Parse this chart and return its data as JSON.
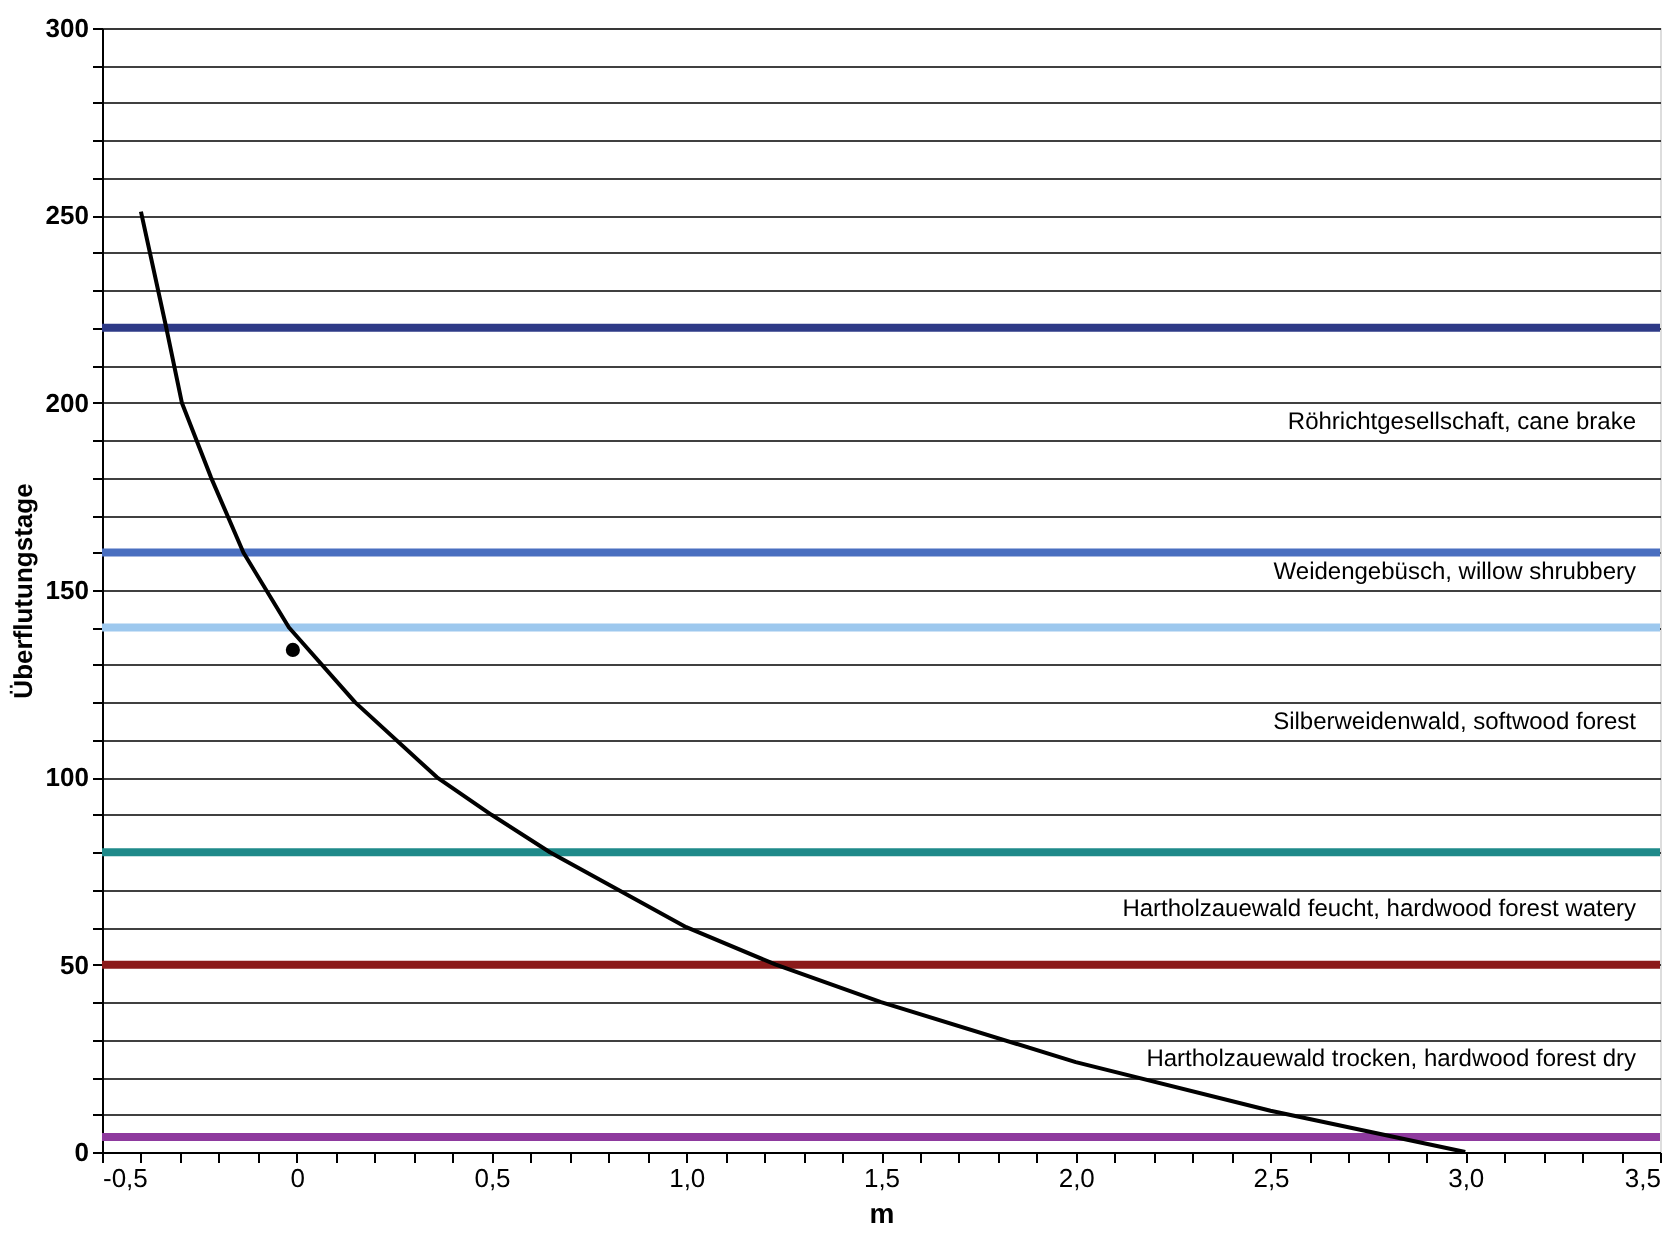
{
  "chart_data": {
    "type": "line",
    "xlabel": "m",
    "ylabel": "Überflutungstage",
    "xlim": [
      -0.5,
      3.5
    ],
    "ylim": [
      0,
      300
    ],
    "xticks": [
      {
        "value": -0.5,
        "label": "-0,5"
      },
      {
        "value": -0.4,
        "label": null
      },
      {
        "value": -0.3,
        "label": null
      },
      {
        "value": -0.2,
        "label": null
      },
      {
        "value": -0.1,
        "label": null
      },
      0,
      {
        "value": 0.1,
        "label": null
      },
      {
        "value": 0.2,
        "label": null
      },
      {
        "value": 0.3,
        "label": null
      },
      {
        "value": 0.4,
        "label": null
      },
      {
        "value": 0.5,
        "label": "0,5"
      },
      {
        "value": 0.6,
        "label": null
      },
      {
        "value": 0.7,
        "label": null
      },
      {
        "value": 0.8,
        "label": null
      },
      {
        "value": 0.9,
        "label": null
      },
      {
        "value": 1.0,
        "label": "1,0"
      },
      {
        "value": 1.1,
        "label": null
      },
      {
        "value": 1.2,
        "label": null
      },
      {
        "value": 1.3,
        "label": null
      },
      {
        "value": 1.4,
        "label": null
      },
      {
        "value": 1.5,
        "label": "1,5"
      },
      {
        "value": 1.6,
        "label": null
      },
      {
        "value": 1.7,
        "label": null
      },
      {
        "value": 1.8,
        "label": null
      },
      {
        "value": 1.9,
        "label": null
      },
      {
        "value": 2.0,
        "label": "2,0"
      },
      {
        "value": 2.1,
        "label": null
      },
      {
        "value": 2.2,
        "label": null
      },
      {
        "value": 2.3,
        "label": null
      },
      {
        "value": 2.4,
        "label": null
      },
      {
        "value": 2.5,
        "label": "2,5"
      },
      {
        "value": 2.6,
        "label": null
      },
      {
        "value": 2.7,
        "label": null
      },
      {
        "value": 2.8,
        "label": null
      },
      {
        "value": 2.9,
        "label": null
      },
      {
        "value": 3.0,
        "label": "3,0"
      },
      {
        "value": 3.1,
        "label": null
      },
      {
        "value": 3.2,
        "label": null
      },
      {
        "value": 3.3,
        "label": null
      },
      {
        "value": 3.4,
        "label": null
      },
      {
        "value": 3.5,
        "label": "3,5"
      }
    ],
    "yticks": [
      0,
      {
        "value": 10,
        "label": null
      },
      {
        "value": 20,
        "label": null
      },
      {
        "value": 30,
        "label": null
      },
      {
        "value": 40,
        "label": null
      },
      50,
      {
        "value": 60,
        "label": null
      },
      {
        "value": 70,
        "label": null
      },
      {
        "value": 80,
        "label": null
      },
      {
        "value": 90,
        "label": null
      },
      100,
      {
        "value": 110,
        "label": null
      },
      {
        "value": 120,
        "label": null
      },
      {
        "value": 130,
        "label": null
      },
      {
        "value": 140,
        "label": null
      },
      150,
      {
        "value": 160,
        "label": null
      },
      {
        "value": 170,
        "label": null
      },
      {
        "value": 180,
        "label": null
      },
      {
        "value": 190,
        "label": null
      },
      200,
      {
        "value": 210,
        "label": null
      },
      {
        "value": 220,
        "label": null
      },
      {
        "value": 230,
        "label": null
      },
      {
        "value": 240,
        "label": null
      },
      250,
      {
        "value": 260,
        "label": null
      },
      {
        "value": 270,
        "label": null
      },
      {
        "value": 280,
        "label": null
      },
      {
        "value": 290,
        "label": null
      },
      300
    ],
    "grid": "y",
    "legend": false,
    "series": [
      {
        "color": "#000000",
        "x": [
          -0.4,
          -0.335,
          -0.295,
          -0.22,
          -0.137,
          -0.02,
          0.15,
          0.36,
          0.5,
          0.65,
          1.0,
          1.23,
          1.5,
          2.0,
          2.5,
          3.0
        ],
        "values": [
          251,
          220,
          200,
          180,
          160,
          140,
          120,
          100,
          90,
          80,
          60,
          50,
          40,
          24,
          11,
          0
        ]
      },
      {
        "type": "scatter",
        "color": "#000000",
        "marker": "circle",
        "x": [
          -0.01
        ],
        "values": [
          134
        ]
      }
    ],
    "ref_lines": [
      {
        "axis": "y",
        "value": 220,
        "color": "#2e3a87"
      },
      {
        "axis": "y",
        "value": 160,
        "color": "#4a6fc0"
      },
      {
        "axis": "y",
        "value": 140,
        "color": "#9dc8ee"
      },
      {
        "axis": "y",
        "value": 80,
        "color": "#1f8a8a"
      },
      {
        "axis": "y",
        "value": 50,
        "color": "#8b1a1a"
      },
      {
        "axis": "y",
        "value": 4,
        "color": "#8e3a9e"
      }
    ],
    "annotations": [
      "Röhrichtgesellschaft, cane brake",
      "Weidengebüsch, willow shrubbery",
      "Silberweidenwald, softwood forest",
      "Hartholzauewald feucht, hardwood forest watery",
      "Hartholzauewald trocken, hardwood forest dry"
    ]
  }
}
